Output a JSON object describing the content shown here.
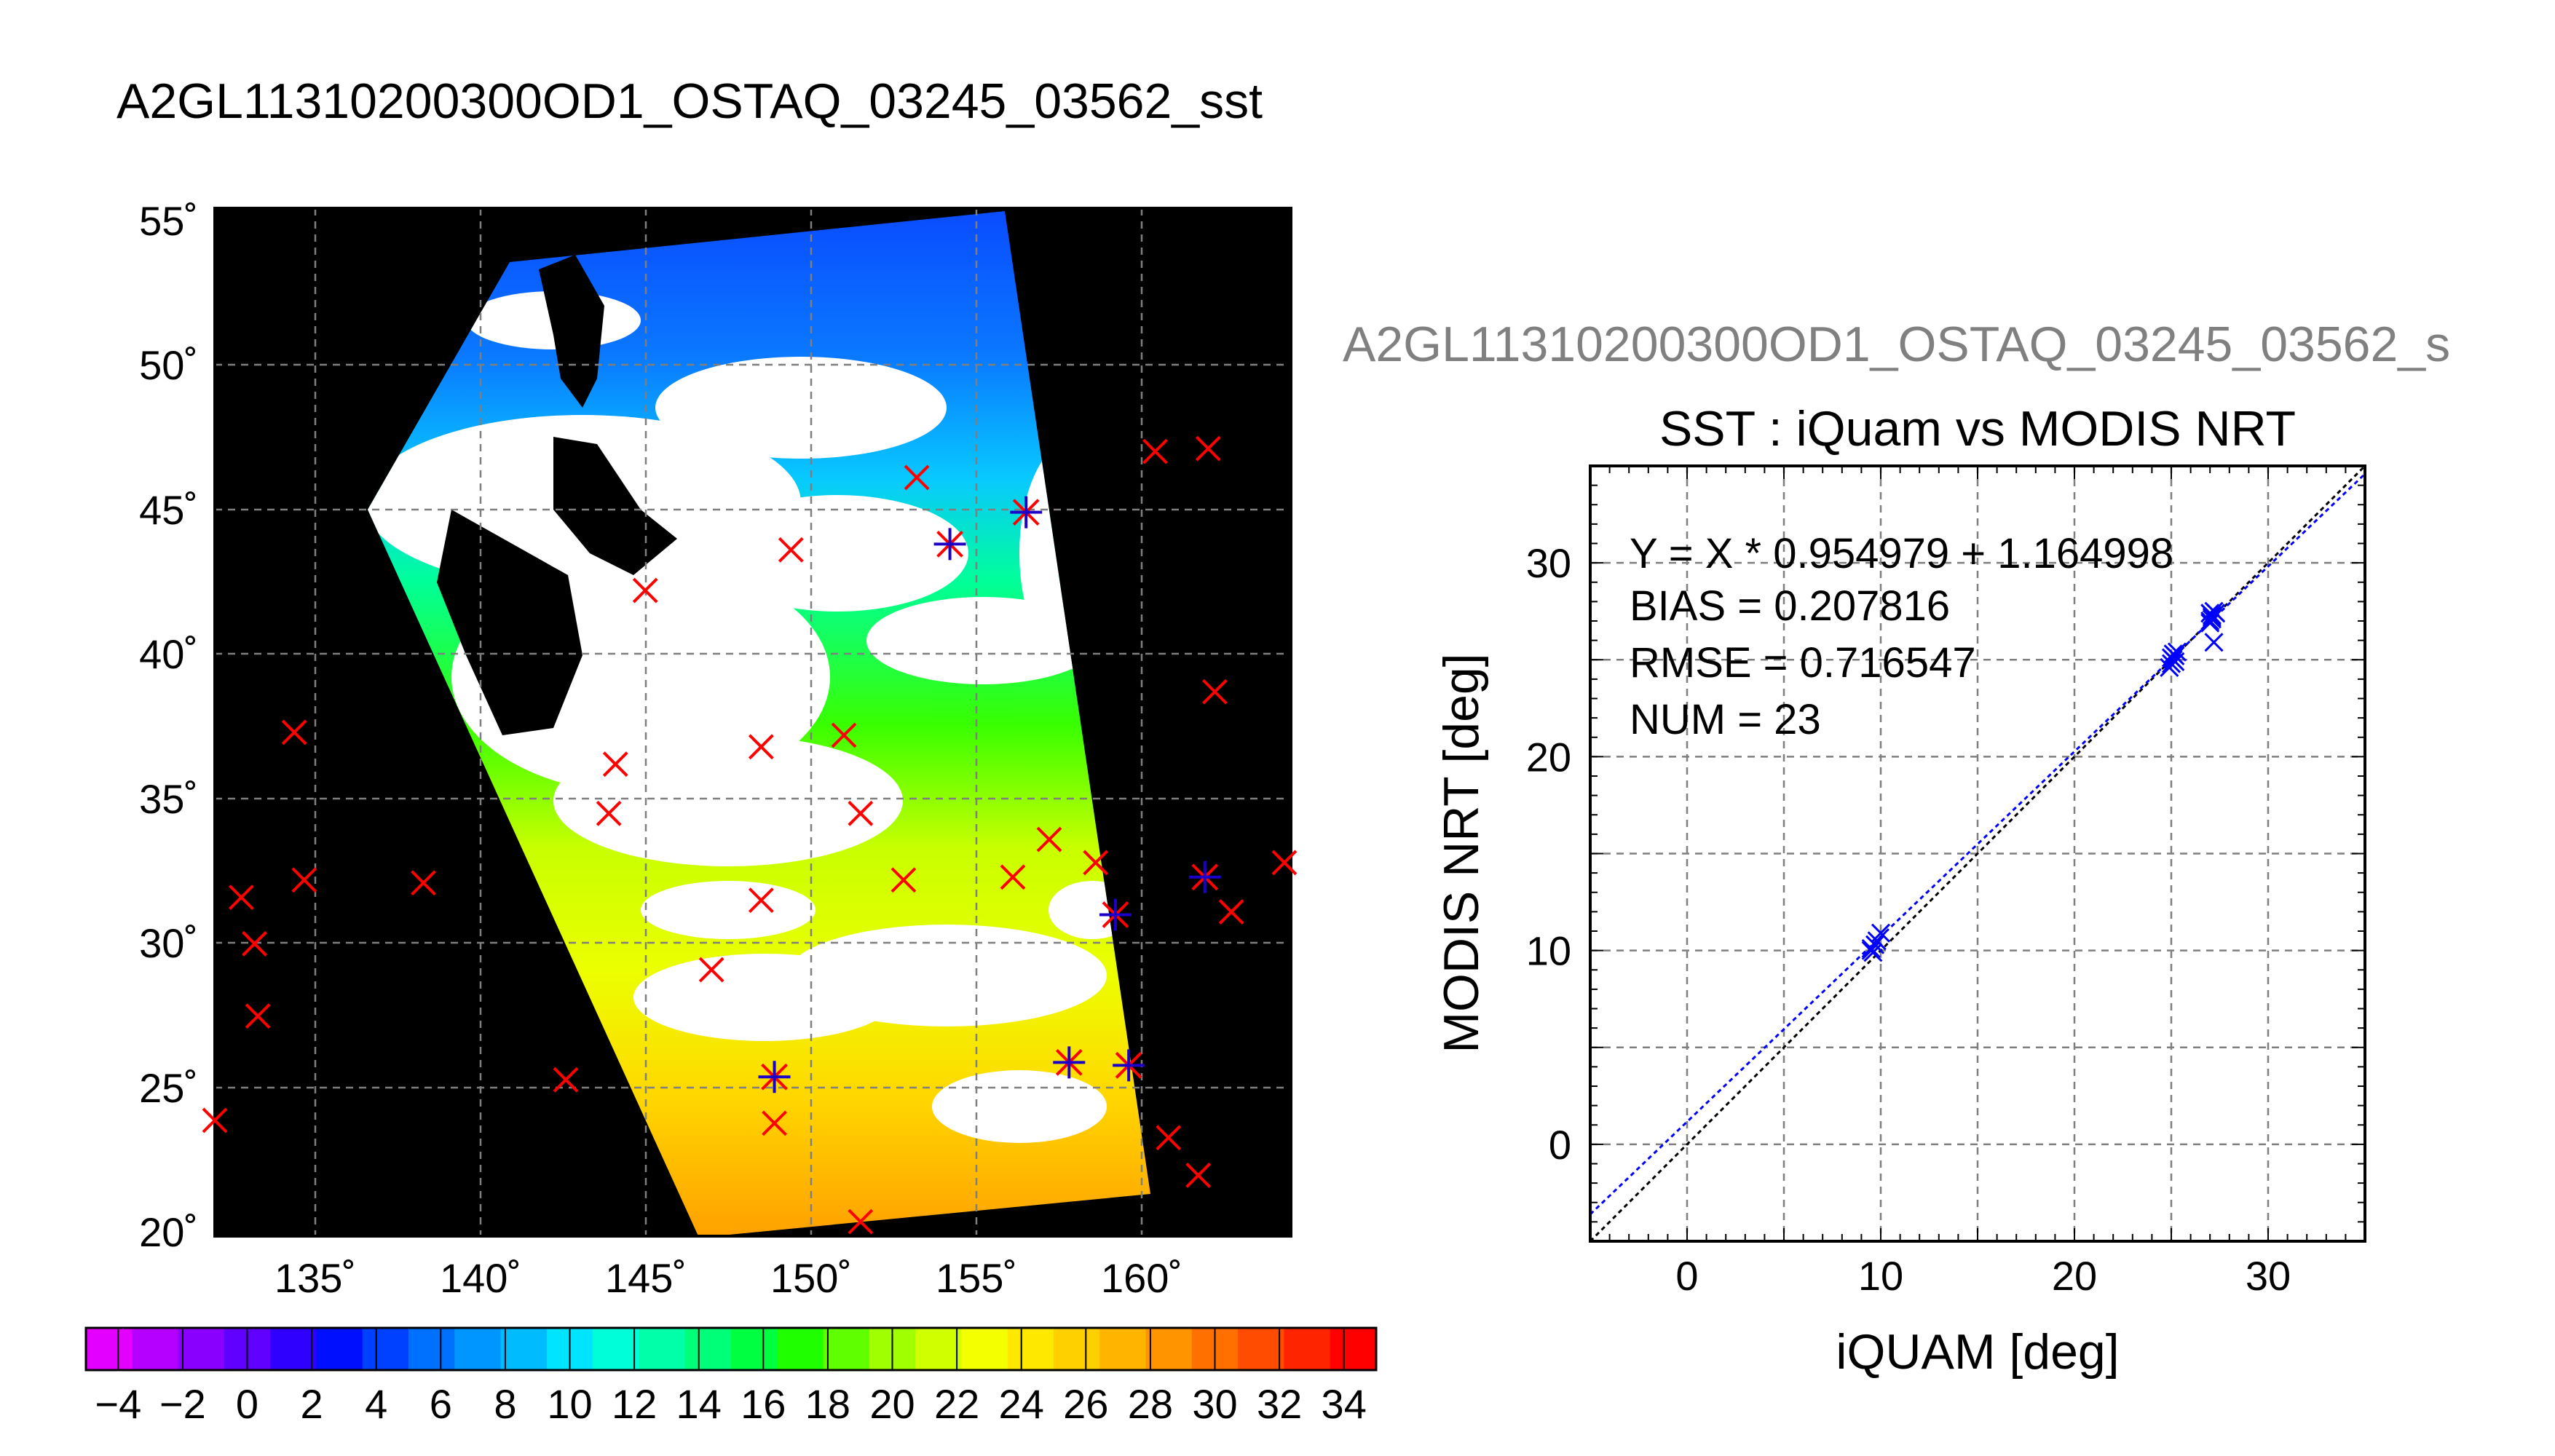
{
  "main_title": "A2GL11310200300OD1_OSTAQ_03245_03562_sst",
  "map": {
    "lat_labels": [
      "55˚",
      "50˚",
      "45˚",
      "40˚",
      "35˚",
      "30˚",
      "25˚",
      "20˚"
    ],
    "lon_labels": [
      "135˚",
      "140˚",
      "145˚",
      "150˚",
      "155˚",
      "160˚"
    ],
    "colorbar": {
      "labels": [
        "−4",
        "−2",
        "0",
        "2",
        "4",
        "6",
        "8",
        "10",
        "12",
        "14",
        "16",
        "18",
        "20",
        "22",
        "24",
        "26",
        "28",
        "30",
        "32",
        "34"
      ],
      "range": [
        -5,
        35
      ],
      "colors": [
        "#e400ff",
        "#b500ff",
        "#8a00ff",
        "#6000ff",
        "#3000ff",
        "#0010ff",
        "#0040ff",
        "#0070ff",
        "#0096ff",
        "#00bcff",
        "#00e4ff",
        "#00ffd8",
        "#00ffa8",
        "#00ff78",
        "#00ff40",
        "#20ff00",
        "#60ff00",
        "#a0ff00",
        "#d0ff00",
        "#f4ff00",
        "#ffe800",
        "#ffd000",
        "#ffb400",
        "#ff9400",
        "#ff7000",
        "#ff4c00",
        "#ff2400",
        "#ff0000"
      ]
    },
    "marker_color": "#ff0000",
    "match_color": "#1a00c8"
  },
  "scatter": {
    "subtitle": "A2GL11310200300OD1_OSTAQ_03245_03562_s",
    "title": "SST : iQuam vs MODIS NRT",
    "stats": [
      "Y = X * 0.954979 + 1.164998",
      "BIAS = 0.207816",
      "RMSE = 0.716547",
      "NUM = 23"
    ],
    "xlabel": "iQUAM [deg]",
    "ylabel": "MODIS NRT [deg]",
    "xticks": [
      "0",
      "10",
      "20",
      "30"
    ],
    "yticks": [
      "0",
      "10",
      "20",
      "30"
    ],
    "point_color": "#0000ff"
  },
  "chart_data": [
    {
      "type": "scatter",
      "title": "SST : iQuam vs MODIS NRT",
      "xlabel": "iQUAM [deg]",
      "ylabel": "MODIS NRT [deg]",
      "xlim": [
        -5,
        35
      ],
      "ylim": [
        -5,
        35
      ],
      "grid": true,
      "fit": {
        "slope": 0.954979,
        "intercept": 1.164998
      },
      "points": [
        {
          "x": 9.5,
          "y": 10.0
        },
        {
          "x": 9.7,
          "y": 10.3
        },
        {
          "x": 10.0,
          "y": 10.9
        },
        {
          "x": 9.6,
          "y": 9.9
        },
        {
          "x": 24.9,
          "y": 24.6
        },
        {
          "x": 25.1,
          "y": 25.0
        },
        {
          "x": 25.3,
          "y": 25.4
        },
        {
          "x": 25.0,
          "y": 24.8
        },
        {
          "x": 25.2,
          "y": 25.2
        },
        {
          "x": 27.0,
          "y": 27.0
        },
        {
          "x": 27.1,
          "y": 27.3
        },
        {
          "x": 27.2,
          "y": 27.5
        },
        {
          "x": 27.0,
          "y": 26.9
        },
        {
          "x": 27.2,
          "y": 25.9
        },
        {
          "x": 27.1,
          "y": 27.2
        },
        {
          "x": 9.8,
          "y": 10.5
        },
        {
          "x": 25.0,
          "y": 25.1
        },
        {
          "x": 27.0,
          "y": 27.4
        },
        {
          "x": 9.5,
          "y": 10.1
        },
        {
          "x": 25.2,
          "y": 24.9
        },
        {
          "x": 27.1,
          "y": 27.1
        },
        {
          "x": 25.1,
          "y": 25.3
        },
        {
          "x": 27.3,
          "y": 27.4
        }
      ]
    },
    {
      "type": "scatter",
      "title": "A2GL11310200300OD1_OSTAQ_03245_03562_sst",
      "xlim": [
        132,
        164.5
      ],
      "ylim": [
        20,
        55.5
      ],
      "grid": true,
      "buoys": [
        {
          "lon": 160.4,
          "lat": 47.1
        },
        {
          "lon": 162.0,
          "lat": 47.2
        },
        {
          "lon": 153.2,
          "lat": 46.2
        },
        {
          "lon": 149.4,
          "lat": 43.7
        },
        {
          "lon": 145.0,
          "lat": 42.3
        },
        {
          "lon": 162.2,
          "lat": 38.8
        },
        {
          "lon": 134.4,
          "lat": 37.4
        },
        {
          "lon": 144.1,
          "lat": 36.3
        },
        {
          "lon": 148.5,
          "lat": 36.9
        },
        {
          "lon": 151.0,
          "lat": 37.3
        },
        {
          "lon": 143.9,
          "lat": 34.6
        },
        {
          "lon": 151.5,
          "lat": 34.6
        },
        {
          "lon": 157.2,
          "lat": 33.7
        },
        {
          "lon": 158.6,
          "lat": 32.9
        },
        {
          "lon": 164.3,
          "lat": 32.9
        },
        {
          "lon": 132.8,
          "lat": 31.7
        },
        {
          "lon": 134.7,
          "lat": 32.3
        },
        {
          "lon": 138.3,
          "lat": 32.2
        },
        {
          "lon": 148.5,
          "lat": 31.6
        },
        {
          "lon": 152.8,
          "lat": 32.3
        },
        {
          "lon": 156.1,
          "lat": 32.4
        },
        {
          "lon": 162.7,
          "lat": 31.2
        },
        {
          "lon": 133.2,
          "lat": 30.1
        },
        {
          "lon": 147.0,
          "lat": 29.2
        },
        {
          "lon": 133.3,
          "lat": 27.6
        },
        {
          "lon": 142.6,
          "lat": 25.4
        },
        {
          "lon": 132.0,
          "lat": 24.0
        },
        {
          "lon": 148.9,
          "lat": 23.9
        },
        {
          "lon": 160.8,
          "lat": 23.4
        },
        {
          "lon": 161.7,
          "lat": 22.1
        },
        {
          "lon": 151.5,
          "lat": 20.5
        }
      ],
      "matches": [
        {
          "lon": 156.5,
          "lat": 45.0
        },
        {
          "lon": 154.2,
          "lat": 43.9
        },
        {
          "lon": 159.2,
          "lat": 31.1
        },
        {
          "lon": 161.9,
          "lat": 32.4
        },
        {
          "lon": 148.9,
          "lat": 25.5
        },
        {
          "lon": 157.8,
          "lat": 26.0
        },
        {
          "lon": 159.6,
          "lat": 25.9
        }
      ]
    }
  ]
}
